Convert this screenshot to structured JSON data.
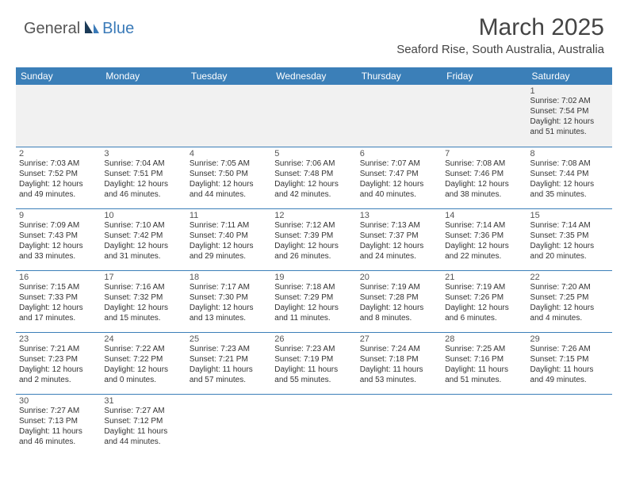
{
  "brand": {
    "general": "General",
    "blue": "Blue"
  },
  "title": "March 2025",
  "location": "Seaford Rise, South Australia, Australia",
  "day_headers": [
    "Sunday",
    "Monday",
    "Tuesday",
    "Wednesday",
    "Thursday",
    "Friday",
    "Saturday"
  ],
  "colors": {
    "header_bg": "#3b7fb8",
    "header_fg": "#ffffff",
    "rule": "#3b7fb8",
    "blank_bg": "#f1f1f1"
  },
  "weeks": [
    [
      null,
      null,
      null,
      null,
      null,
      null,
      {
        "n": "1",
        "sr": "Sunrise: 7:02 AM",
        "ss": "Sunset: 7:54 PM",
        "d1": "Daylight: 12 hours",
        "d2": "and 51 minutes."
      }
    ],
    [
      {
        "n": "2",
        "sr": "Sunrise: 7:03 AM",
        "ss": "Sunset: 7:52 PM",
        "d1": "Daylight: 12 hours",
        "d2": "and 49 minutes."
      },
      {
        "n": "3",
        "sr": "Sunrise: 7:04 AM",
        "ss": "Sunset: 7:51 PM",
        "d1": "Daylight: 12 hours",
        "d2": "and 46 minutes."
      },
      {
        "n": "4",
        "sr": "Sunrise: 7:05 AM",
        "ss": "Sunset: 7:50 PM",
        "d1": "Daylight: 12 hours",
        "d2": "and 44 minutes."
      },
      {
        "n": "5",
        "sr": "Sunrise: 7:06 AM",
        "ss": "Sunset: 7:48 PM",
        "d1": "Daylight: 12 hours",
        "d2": "and 42 minutes."
      },
      {
        "n": "6",
        "sr": "Sunrise: 7:07 AM",
        "ss": "Sunset: 7:47 PM",
        "d1": "Daylight: 12 hours",
        "d2": "and 40 minutes."
      },
      {
        "n": "7",
        "sr": "Sunrise: 7:08 AM",
        "ss": "Sunset: 7:46 PM",
        "d1": "Daylight: 12 hours",
        "d2": "and 38 minutes."
      },
      {
        "n": "8",
        "sr": "Sunrise: 7:08 AM",
        "ss": "Sunset: 7:44 PM",
        "d1": "Daylight: 12 hours",
        "d2": "and 35 minutes."
      }
    ],
    [
      {
        "n": "9",
        "sr": "Sunrise: 7:09 AM",
        "ss": "Sunset: 7:43 PM",
        "d1": "Daylight: 12 hours",
        "d2": "and 33 minutes."
      },
      {
        "n": "10",
        "sr": "Sunrise: 7:10 AM",
        "ss": "Sunset: 7:42 PM",
        "d1": "Daylight: 12 hours",
        "d2": "and 31 minutes."
      },
      {
        "n": "11",
        "sr": "Sunrise: 7:11 AM",
        "ss": "Sunset: 7:40 PM",
        "d1": "Daylight: 12 hours",
        "d2": "and 29 minutes."
      },
      {
        "n": "12",
        "sr": "Sunrise: 7:12 AM",
        "ss": "Sunset: 7:39 PM",
        "d1": "Daylight: 12 hours",
        "d2": "and 26 minutes."
      },
      {
        "n": "13",
        "sr": "Sunrise: 7:13 AM",
        "ss": "Sunset: 7:37 PM",
        "d1": "Daylight: 12 hours",
        "d2": "and 24 minutes."
      },
      {
        "n": "14",
        "sr": "Sunrise: 7:14 AM",
        "ss": "Sunset: 7:36 PM",
        "d1": "Daylight: 12 hours",
        "d2": "and 22 minutes."
      },
      {
        "n": "15",
        "sr": "Sunrise: 7:14 AM",
        "ss": "Sunset: 7:35 PM",
        "d1": "Daylight: 12 hours",
        "d2": "and 20 minutes."
      }
    ],
    [
      {
        "n": "16",
        "sr": "Sunrise: 7:15 AM",
        "ss": "Sunset: 7:33 PM",
        "d1": "Daylight: 12 hours",
        "d2": "and 17 minutes."
      },
      {
        "n": "17",
        "sr": "Sunrise: 7:16 AM",
        "ss": "Sunset: 7:32 PM",
        "d1": "Daylight: 12 hours",
        "d2": "and 15 minutes."
      },
      {
        "n": "18",
        "sr": "Sunrise: 7:17 AM",
        "ss": "Sunset: 7:30 PM",
        "d1": "Daylight: 12 hours",
        "d2": "and 13 minutes."
      },
      {
        "n": "19",
        "sr": "Sunrise: 7:18 AM",
        "ss": "Sunset: 7:29 PM",
        "d1": "Daylight: 12 hours",
        "d2": "and 11 minutes."
      },
      {
        "n": "20",
        "sr": "Sunrise: 7:19 AM",
        "ss": "Sunset: 7:28 PM",
        "d1": "Daylight: 12 hours",
        "d2": "and 8 minutes."
      },
      {
        "n": "21",
        "sr": "Sunrise: 7:19 AM",
        "ss": "Sunset: 7:26 PM",
        "d1": "Daylight: 12 hours",
        "d2": "and 6 minutes."
      },
      {
        "n": "22",
        "sr": "Sunrise: 7:20 AM",
        "ss": "Sunset: 7:25 PM",
        "d1": "Daylight: 12 hours",
        "d2": "and 4 minutes."
      }
    ],
    [
      {
        "n": "23",
        "sr": "Sunrise: 7:21 AM",
        "ss": "Sunset: 7:23 PM",
        "d1": "Daylight: 12 hours",
        "d2": "and 2 minutes."
      },
      {
        "n": "24",
        "sr": "Sunrise: 7:22 AM",
        "ss": "Sunset: 7:22 PM",
        "d1": "Daylight: 12 hours",
        "d2": "and 0 minutes."
      },
      {
        "n": "25",
        "sr": "Sunrise: 7:23 AM",
        "ss": "Sunset: 7:21 PM",
        "d1": "Daylight: 11 hours",
        "d2": "and 57 minutes."
      },
      {
        "n": "26",
        "sr": "Sunrise: 7:23 AM",
        "ss": "Sunset: 7:19 PM",
        "d1": "Daylight: 11 hours",
        "d2": "and 55 minutes."
      },
      {
        "n": "27",
        "sr": "Sunrise: 7:24 AM",
        "ss": "Sunset: 7:18 PM",
        "d1": "Daylight: 11 hours",
        "d2": "and 53 minutes."
      },
      {
        "n": "28",
        "sr": "Sunrise: 7:25 AM",
        "ss": "Sunset: 7:16 PM",
        "d1": "Daylight: 11 hours",
        "d2": "and 51 minutes."
      },
      {
        "n": "29",
        "sr": "Sunrise: 7:26 AM",
        "ss": "Sunset: 7:15 PM",
        "d1": "Daylight: 11 hours",
        "d2": "and 49 minutes."
      }
    ],
    [
      {
        "n": "30",
        "sr": "Sunrise: 7:27 AM",
        "ss": "Sunset: 7:13 PM",
        "d1": "Daylight: 11 hours",
        "d2": "and 46 minutes."
      },
      {
        "n": "31",
        "sr": "Sunrise: 7:27 AM",
        "ss": "Sunset: 7:12 PM",
        "d1": "Daylight: 11 hours",
        "d2": "and 44 minutes."
      },
      null,
      null,
      null,
      null,
      null
    ]
  ]
}
